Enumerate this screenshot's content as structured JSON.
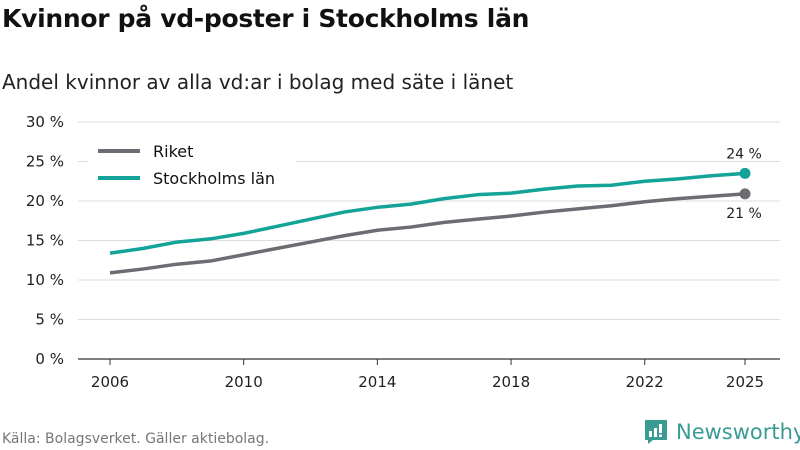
{
  "title": "Kvinnor på vd-poster i Stockholms län",
  "subtitle": "Andel kvinnor av alla vd:ar i bolag med säte i länet",
  "source": "Källa: Bolagsverket. Gäller aktiebolag.",
  "brand": "Newsworthy",
  "colors": {
    "riket": "#6e6c73",
    "stockholm": "#13a398",
    "grid": "#dddddd",
    "brand": "#3a9b94"
  },
  "chart_data": {
    "type": "line",
    "title": "Kvinnor på vd-poster i Stockholms län",
    "xlabel": "",
    "ylabel": "",
    "ylim": [
      0,
      30
    ],
    "xlim": [
      2006,
      2025
    ],
    "yticks": [
      0,
      5,
      10,
      15,
      20,
      25,
      30
    ],
    "ytick_labels": [
      "0 %",
      "5 %",
      "10 %",
      "15 %",
      "20 %",
      "25 %",
      "30 %"
    ],
    "xticks": [
      2006,
      2010,
      2014,
      2018,
      2022,
      2025
    ],
    "xtick_labels": [
      "2006",
      "2010",
      "2014",
      "2018",
      "2022",
      "2025"
    ],
    "grid": true,
    "legend_position": "top-left",
    "x": [
      2006,
      2007,
      2008,
      2009,
      2010,
      2011,
      2012,
      2013,
      2014,
      2015,
      2016,
      2017,
      2018,
      2019,
      2020,
      2021,
      2022,
      2023,
      2024,
      2025
    ],
    "series": [
      {
        "name": "Riket",
        "color": "#6e6c73",
        "end_label": "21 %",
        "values": [
          10.9,
          11.4,
          12.0,
          12.4,
          13.2,
          14.0,
          14.8,
          15.6,
          16.3,
          16.7,
          17.3,
          17.7,
          18.1,
          18.6,
          19.0,
          19.4,
          19.9,
          20.3,
          20.6,
          20.9
        ]
      },
      {
        "name": "Stockholms län",
        "color": "#13a398",
        "end_label": "24 %",
        "values": [
          13.4,
          14.0,
          14.8,
          15.2,
          15.9,
          16.8,
          17.7,
          18.6,
          19.2,
          19.6,
          20.3,
          20.8,
          21.0,
          21.5,
          21.9,
          22.0,
          22.5,
          22.8,
          23.2,
          23.5
        ]
      }
    ]
  }
}
